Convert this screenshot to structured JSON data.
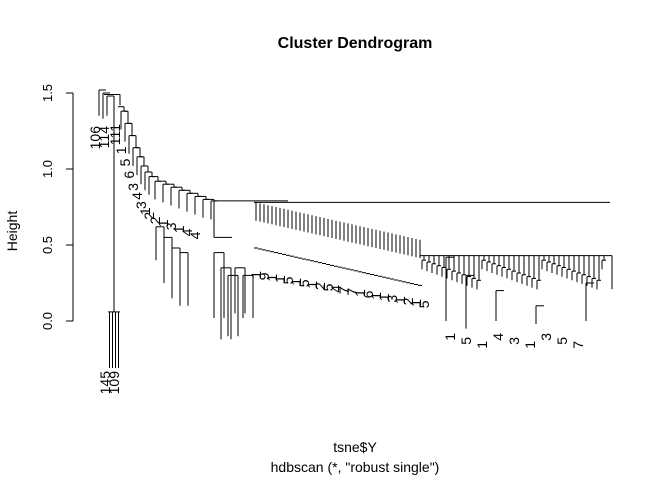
{
  "chart_data": {
    "type": "dendrogram",
    "title": "Cluster Dendrogram",
    "xlabel": "tsne$Y",
    "sub": "hdbscan (*, \"robust single\")",
    "ylabel": "Height",
    "yticks": [
      "0.0",
      "0.5",
      "1.0",
      "1.5"
    ],
    "ylim": [
      0,
      1.5
    ],
    "grid": false,
    "legend": "none",
    "leaf_labels": [
      "145",
      "109",
      "106",
      "114",
      "111",
      "1",
      "5",
      "6",
      "3",
      "4",
      "3",
      "1",
      "2",
      "2",
      "1",
      "3",
      "1",
      "4",
      "4",
      "1",
      "9",
      "1",
      "1",
      "5",
      "1",
      "5",
      "1",
      "2",
      "5",
      "4",
      "7",
      "7",
      "1",
      "6",
      "1",
      "1",
      "3",
      "1",
      "2",
      "1",
      "5",
      "1",
      "5",
      "1",
      "4",
      "3",
      "1",
      "3",
      "5",
      "7"
    ]
  }
}
